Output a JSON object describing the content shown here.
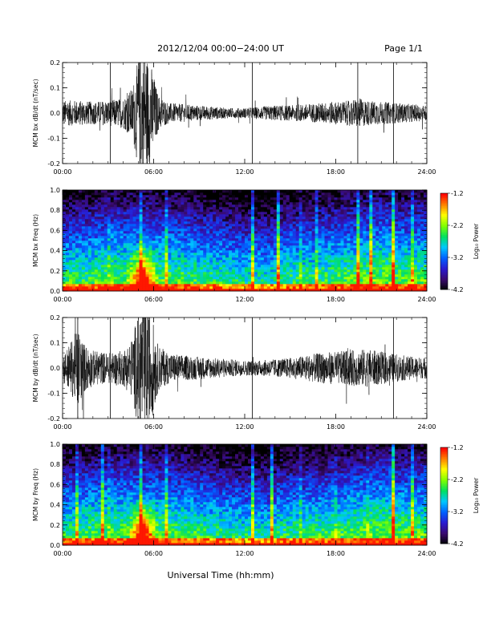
{
  "header": {
    "title": "2012/12/04  00:00−24:00 UT",
    "page": "Page 1/1"
  },
  "xaxis": {
    "title": "Universal Time (hh:mm)",
    "ticks": [
      "00:00",
      "06:00",
      "12:00",
      "18:00",
      "24:00"
    ],
    "range_hours": [
      0,
      24
    ]
  },
  "colorbar": {
    "label": "Log₁₀ Power",
    "ticks": [
      "-1.2",
      "-2.2",
      "-3.2",
      "-4.2"
    ],
    "range": [
      -4.2,
      -1.2
    ],
    "colors": [
      "#000000",
      "#3a0a6e",
      "#2a1ad0",
      "#0060ff",
      "#00c8ff",
      "#00e060",
      "#80ff00",
      "#ffff00",
      "#ff8000",
      "#ff0000"
    ]
  },
  "chart_data": [
    {
      "type": "line",
      "ylabel": "MCM bx dB/dt (nT/sec)",
      "ylim": [
        -0.2,
        0.2
      ],
      "yticks": [
        "-0.2",
        "-0.1",
        "0.0",
        "0.1",
        "0.2"
      ],
      "vertical_lines_hours": [
        3.15,
        12.5,
        19.45,
        21.8
      ],
      "envelope": {
        "x_hours": [
          0,
          1,
          2,
          3,
          4,
          4.6,
          5.0,
          5.4,
          5.9,
          6.3,
          7,
          8,
          9,
          10,
          11,
          12,
          13,
          14,
          15,
          16,
          17,
          18,
          19,
          19.5,
          20,
          21,
          22,
          23,
          24
        ],
        "amplitude": [
          0.05,
          0.05,
          0.045,
          0.05,
          0.06,
          0.1,
          0.22,
          0.25,
          0.18,
          0.07,
          0.04,
          0.035,
          0.03,
          0.025,
          0.02,
          0.02,
          0.025,
          0.03,
          0.03,
          0.035,
          0.04,
          0.045,
          0.05,
          0.06,
          0.05,
          0.045,
          0.04,
          0.035,
          0.03
        ]
      }
    },
    {
      "type": "heatmap",
      "ylabel": "MCM bx Freq (Hz)",
      "ylim": [
        0.0,
        1.0
      ],
      "yticks": [
        "0.0",
        "0.2",
        "0.4",
        "0.6",
        "0.8",
        "1.0"
      ],
      "colorscale": "log10 power",
      "vertical_streaks_hours": [
        3.15,
        5.1,
        6.9,
        12.5,
        14.2,
        15.6,
        16.8,
        19.45,
        20.3,
        21.8,
        23.0
      ],
      "hot_region_hours": [
        4.2,
        6.4
      ],
      "hot_region_peak_freq": 0.45
    },
    {
      "type": "line",
      "ylabel": "MCM by dB/dt (nT/sec)",
      "ylim": [
        -0.2,
        0.2
      ],
      "yticks": [
        "-0.2",
        "-0.1",
        "0.0",
        "0.1",
        "0.2"
      ],
      "vertical_lines_hours": [
        1.0,
        3.15,
        12.5,
        21.8
      ],
      "envelope": {
        "x_hours": [
          0,
          0.7,
          1.0,
          1.4,
          2,
          3,
          4,
          4.6,
          5.0,
          5.4,
          5.9,
          6.3,
          7,
          8,
          9,
          10,
          11,
          12,
          13,
          14,
          15,
          16,
          17,
          18,
          19,
          20,
          21,
          22,
          23,
          24
        ],
        "amplitude": [
          0.05,
          0.12,
          0.16,
          0.1,
          0.07,
          0.06,
          0.07,
          0.12,
          0.24,
          0.26,
          0.2,
          0.09,
          0.06,
          0.05,
          0.045,
          0.04,
          0.035,
          0.03,
          0.03,
          0.035,
          0.04,
          0.05,
          0.06,
          0.065,
          0.07,
          0.075,
          0.065,
          0.055,
          0.045,
          0.04
        ]
      }
    },
    {
      "type": "heatmap",
      "ylabel": "MCM by Freq (Hz)",
      "ylim": [
        0.0,
        1.0
      ],
      "yticks": [
        "0.0",
        "0.2",
        "0.4",
        "0.6",
        "0.8",
        "1.0"
      ],
      "colorscale": "log10 power",
      "vertical_streaks_hours": [
        1.0,
        2.6,
        3.15,
        5.2,
        6.9,
        12.5,
        13.8,
        15.6,
        17.9,
        20.2,
        21.8,
        23.1
      ],
      "hot_region_hours": [
        4.3,
        6.3
      ],
      "hot_region_peak_freq": 0.45
    }
  ]
}
